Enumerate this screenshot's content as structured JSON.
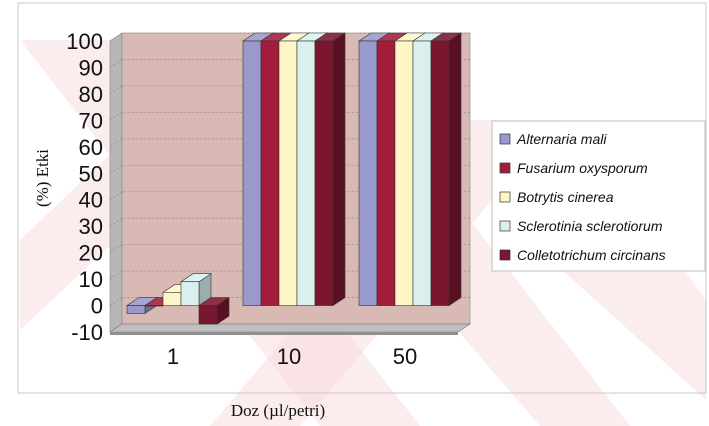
{
  "chart_data": {
    "type": "bar",
    "title": "",
    "xlabel": "Doz (µl/petri)",
    "ylabel": "(%) Etki",
    "ylim": [
      -10,
      100
    ],
    "yticks": [
      "-10",
      "0",
      "10",
      "20",
      "30",
      "40",
      "50",
      "60",
      "70",
      "80",
      "90",
      "100"
    ],
    "categories": [
      "1",
      "10",
      "50"
    ],
    "series": [
      {
        "name": "Alternaria mali",
        "color": "#9999cc",
        "values": [
          -3,
          100,
          100
        ]
      },
      {
        "name": "Fusarium oxysporum",
        "color": "#a31c3c",
        "values": [
          0,
          100,
          100
        ]
      },
      {
        "name": "Botrytis cinerea",
        "color": "#fff6c8",
        "values": [
          5,
          100,
          100
        ]
      },
      {
        "name": "Sclerotinia sclerotiorum",
        "color": "#d9f0ef",
        "values": [
          9,
          100,
          100
        ]
      },
      {
        "name": "Colletotrichum circinans",
        "color": "#7b1630",
        "values": [
          -7,
          100,
          100
        ]
      }
    ],
    "legend_position": "right",
    "grid": true,
    "style": "3d-clustered"
  },
  "colors": {
    "wall": "#d8b9b4",
    "floor": "#c0bfbf",
    "side_wall": "#b7b7b7",
    "background_stripes": "#f7dde0"
  }
}
